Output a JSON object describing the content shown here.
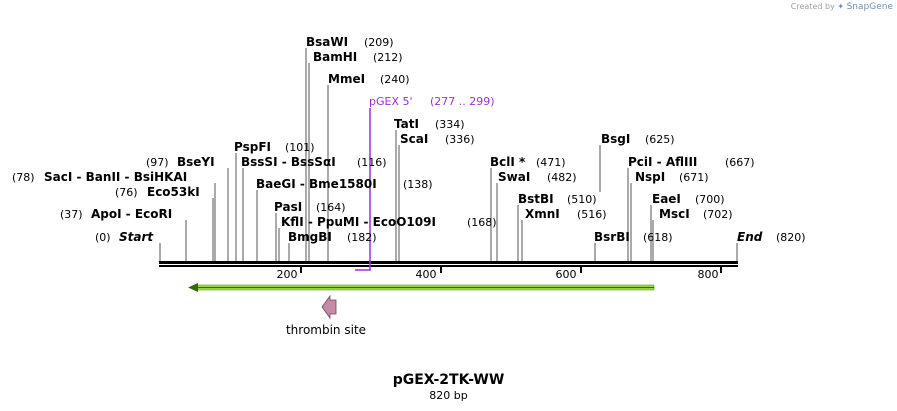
{
  "credit": {
    "prefix": "Created by",
    "brand": "SnapGene"
  },
  "plasmid": {
    "name": "pGEX-2TK-WW",
    "size": "820 bp"
  },
  "ruler": {
    "ticks": [
      "200",
      "400",
      "600",
      "800"
    ]
  },
  "sites": [
    {
      "id": "bsawi",
      "label": "BsaWI",
      "pos": "(209)"
    },
    {
      "id": "bamhi",
      "label": "BamHI",
      "pos": "(212)"
    },
    {
      "id": "mmei",
      "label": "MmeI",
      "pos": "(240)"
    },
    {
      "id": "tati",
      "label": "TatI",
      "pos": "(334)"
    },
    {
      "id": "scai",
      "label": "ScaI",
      "pos": "(336)"
    },
    {
      "id": "pspfi",
      "label": "PspFI",
      "pos": "(101)"
    },
    {
      "id": "bsesi",
      "label": "BssSI  -  BssSαI",
      "pos": "(116)"
    },
    {
      "id": "bseyi",
      "label": "BseYI",
      "pos": "(97)"
    },
    {
      "id": "saci",
      "label": "SacI  -  BanII  -  BsiHKAI",
      "pos": "(78)"
    },
    {
      "id": "eco53ki",
      "label": "Eco53kI",
      "pos": "(76)"
    },
    {
      "id": "baegi",
      "label": "BaeGI  -  Bme1580I",
      "pos": "(138)"
    },
    {
      "id": "pasi",
      "label": "PasI",
      "pos": "(164)"
    },
    {
      "id": "kfli",
      "label": "KflI  -  PpuMI  -  EcoO109I",
      "pos": "(168)"
    },
    {
      "id": "bmgbi",
      "label": "BmgBI",
      "pos": "(182)"
    },
    {
      "id": "apoi",
      "label": "ApoI  -  EcoRI",
      "pos": "(37)"
    },
    {
      "id": "start",
      "label": "Start",
      "pos": "(0)"
    },
    {
      "id": "bcli",
      "label": "BclI *",
      "pos": "(471)"
    },
    {
      "id": "swai",
      "label": "SwaI",
      "pos": "(482)"
    },
    {
      "id": "bstbi",
      "label": "BstBI",
      "pos": "(510)"
    },
    {
      "id": "xmni",
      "label": "XmnI",
      "pos": "(516)"
    },
    {
      "id": "bsgi",
      "label": "BsgI",
      "pos": "(625)"
    },
    {
      "id": "pcii",
      "label": "PciI  -  AflIII",
      "pos": "(667)"
    },
    {
      "id": "nspi",
      "label": "NspI",
      "pos": "(671)"
    },
    {
      "id": "eaei",
      "label": "EaeI",
      "pos": "(700)"
    },
    {
      "id": "msci",
      "label": "MscI",
      "pos": "(702)"
    },
    {
      "id": "bsrbi",
      "label": "BsrBI",
      "pos": "(618)"
    },
    {
      "id": "end",
      "label": "End",
      "pos": "(820)"
    }
  ],
  "primer": {
    "label": "pGEX 5'",
    "range": "(277 .. 299)",
    "color": "#9b30d9"
  },
  "features": {
    "orf_color": "#a6e04a",
    "thrombin": {
      "label": "thrombin site",
      "color": "#c68aa8"
    }
  }
}
